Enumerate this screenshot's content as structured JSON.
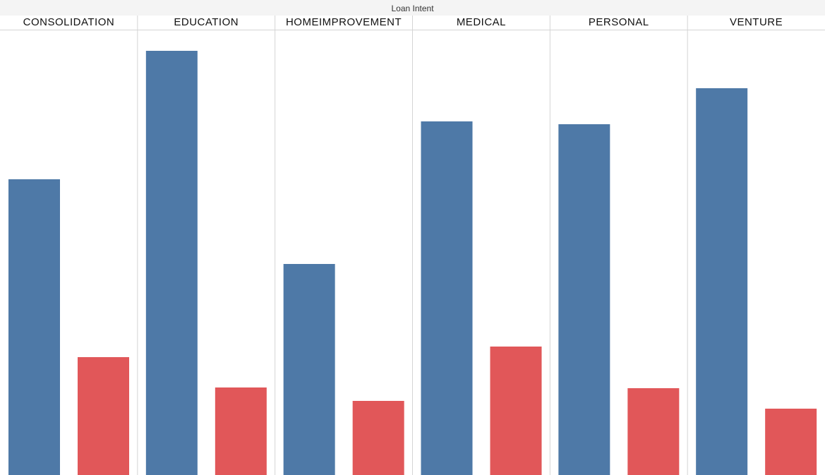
{
  "header": {
    "title": "Loan Intent"
  },
  "chart_data": {
    "type": "bar",
    "title": "Loan Intent",
    "categories": [
      "CONSOLIDATION",
      "EDUCATION",
      "HOMEIMPROVEMENT",
      "MEDICAL",
      "PERSONAL",
      "VENTURE"
    ],
    "series": [
      {
        "values": [
          419,
          601,
          299,
          501,
          497,
          548
        ],
        "color": "#4e79a7"
      },
      {
        "values": [
          167,
          124,
          105,
          182,
          123,
          94
        ],
        "color": "#e15759"
      }
    ],
    "ylim": [
      0,
      630
    ],
    "grid": false,
    "axes_visible": false
  }
}
